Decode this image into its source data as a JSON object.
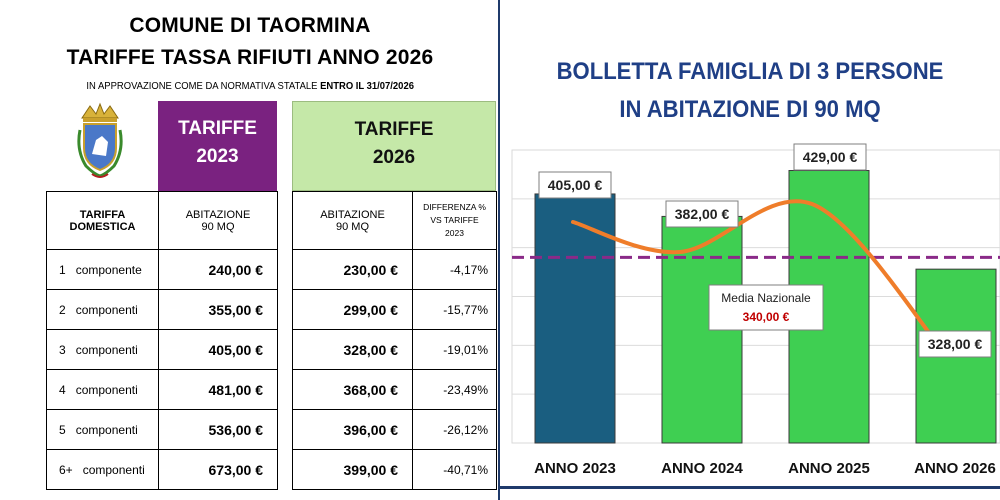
{
  "left": {
    "title1": "COMUNE DI TAORMINA",
    "title2": "TARIFFE TASSA RIFIUTI ANNO 2026",
    "subtitle_normal": "IN APPROVAZIONE COME DA NORMATIVA STATALE ",
    "subtitle_bold": "ENTRO IL 31/07/2026",
    "emblem_icon": "coat-of-arms-icon",
    "header_2023_line1": "TARIFFE",
    "header_2023_line2": "2023",
    "header_2026_line1": "TARIFFE",
    "header_2026_line2": "2026",
    "col_kind_line1": "TARIFFA",
    "col_kind_line2": "DOMESTICA",
    "col_abit_line1": "ABITAZIONE",
    "col_abit_line2": "90 MQ",
    "col_diff_line1": "DIFFERENZA %",
    "col_diff_line2": "VS TARIFFE",
    "col_diff_line3": "2023",
    "colors": {
      "purple": "#7a2280",
      "light_green": "#c5e8a8"
    }
  },
  "chart_data": {
    "type": "table",
    "columns": [
      "TARIFFA DOMESTICA",
      "TARIFFE 2023 ABITAZIONE 90 MQ",
      "TARIFFE 2026 ABITAZIONE 90 MQ",
      "DIFFERENZA % VS TARIFFE 2023"
    ],
    "rows": [
      {
        "num": "1",
        "label": "componente",
        "t2023": "240,00 €",
        "t2026": "230,00 €",
        "diff": "-4,17%"
      },
      {
        "num": "2",
        "label": "componenti",
        "t2023": "355,00 €",
        "t2026": "299,00 €",
        "diff": "-15,77%"
      },
      {
        "num": "3",
        "label": "componenti",
        "t2023": "405,00 €",
        "t2026": "328,00 €",
        "diff": "-19,01%"
      },
      {
        "num": "4",
        "label": "componenti",
        "t2023": "481,00 €",
        "t2026": "368,00 €",
        "diff": "-23,49%"
      },
      {
        "num": "5",
        "label": "componenti",
        "t2023": "536,00 €",
        "t2026": "396,00 €",
        "diff": "-26,12%"
      },
      {
        "num": "6+",
        "label": "componenti",
        "t2023": "673,00 €",
        "t2026": "399,00 €",
        "diff": "-40,71%"
      }
    ]
  },
  "bar_chart": {
    "type": "bar",
    "title_line1": "BOLLETTA FAMIGLIA DI 3 PERSONE",
    "title_line2": "IN ABITAZIONE DI 90 MQ",
    "categories": [
      "ANNO 2023",
      "ANNO 2024",
      "ANNO 2025",
      "ANNO 2026"
    ],
    "values": [
      405,
      382,
      429,
      328
    ],
    "value_labels": [
      "405,00 €",
      "382,00 €",
      "429,00 €",
      "328,00 €"
    ],
    "bar_colors": [
      "#1a5e80",
      "#3fcf52",
      "#3fcf52",
      "#3fcf52"
    ],
    "ylim": [
      150,
      450
    ],
    "grid": true,
    "trend_line_color": "#ef7d2a",
    "reference": {
      "label": "Media Nazionale",
      "value_label": "340,00 €",
      "value": 340,
      "color": "#8a2a88",
      "value_color": "#c00000"
    }
  }
}
